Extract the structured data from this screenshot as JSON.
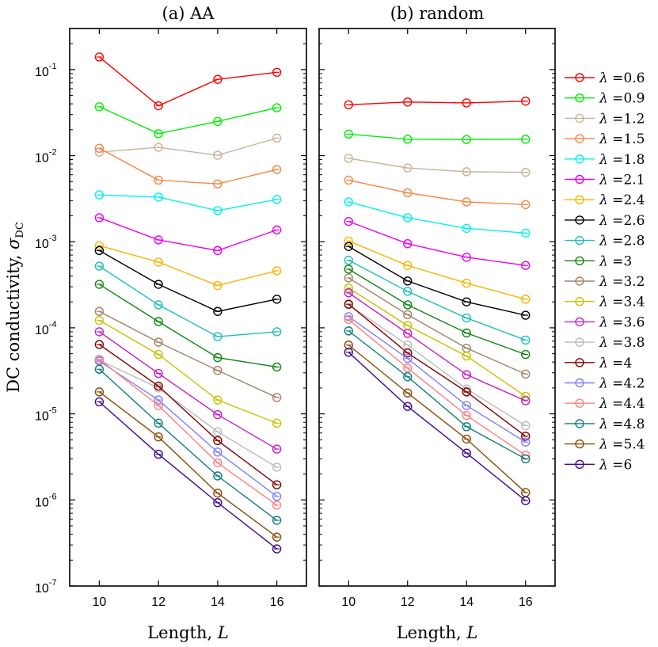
{
  "chart_data": [
    {
      "type": "line",
      "title": "(a) AA",
      "xlabel": "Length, ",
      "xlabel_var": "L",
      "ylabel": "DC conductivity, ",
      "ylabel_var": "σ",
      "ylabel_sub": "DC",
      "yscale": "log",
      "xlim": [
        9,
        17
      ],
      "ylim": [
        1e-07,
        0.3
      ],
      "x": [
        10,
        12,
        14,
        16
      ],
      "x_ticks": [
        "10",
        "12",
        "14",
        "16"
      ],
      "y_ticks": [
        {
          "base": "10",
          "exp": "-7"
        },
        {
          "base": "10",
          "exp": "-6"
        },
        {
          "base": "10",
          "exp": "-5"
        },
        {
          "base": "10",
          "exp": "-4"
        },
        {
          "base": "10",
          "exp": "-3"
        },
        {
          "base": "10",
          "exp": "-2"
        },
        {
          "base": "10",
          "exp": "-1"
        }
      ],
      "series": [
        {
          "name": "0.6",
          "color": "#ff0000",
          "values": [
            0.14,
            0.038,
            0.077,
            0.093
          ]
        },
        {
          "name": "0.9",
          "color": "#00ee00",
          "values": [
            0.037,
            0.018,
            0.025,
            0.036
          ]
        },
        {
          "name": "1.2",
          "color": "#c9b29a",
          "values": [
            0.011,
            0.0125,
            0.0101,
            0.016
          ]
        },
        {
          "name": "1.5",
          "color": "#f88547",
          "values": [
            0.0122,
            0.0052,
            0.0047,
            0.0069
          ]
        },
        {
          "name": "1.8",
          "color": "#00f2f2",
          "values": [
            0.0035,
            0.0033,
            0.0023,
            0.0031
          ]
        },
        {
          "name": "2.1",
          "color": "#ee00ee",
          "values": [
            0.0019,
            0.00105,
            0.00079,
            0.00137
          ]
        },
        {
          "name": "2.4",
          "color": "#f7b500",
          "values": [
            0.0009,
            0.00058,
            0.00031,
            0.00046
          ]
        },
        {
          "name": "2.6",
          "color": "#000000",
          "values": [
            0.00079,
            0.00032,
            0.000155,
            0.000215
          ]
        },
        {
          "name": "2.8",
          "color": "#1fbdbd",
          "values": [
            0.00052,
            0.000185,
            7.9e-05,
            9e-05
          ]
        },
        {
          "name": "3",
          "color": "#138413",
          "values": [
            0.00032,
            0.000118,
            4.5e-05,
            3.5e-05
          ]
        },
        {
          "name": "3.2",
          "color": "#a5826a",
          "values": [
            0.000155,
            6.8e-05,
            3.2e-05,
            1.55e-05
          ]
        },
        {
          "name": "3.4",
          "color": "#c4c400",
          "values": [
            0.000122,
            4.9e-05,
            1.45e-05,
            7.8e-06
          ]
        },
        {
          "name": "3.6",
          "color": "#c71ec7",
          "values": [
            9e-05,
            2.95e-05,
            9.8e-06,
            3.9e-06
          ]
        },
        {
          "name": "3.8",
          "color": "#bbbbbb",
          "values": [
            4.2e-05,
            2e-05,
            6.2e-06,
            2.4e-06
          ]
        },
        {
          "name": "4",
          "color": "#840000",
          "values": [
            6.4e-05,
            2.1e-05,
            4.9e-06,
            1.5e-06
          ]
        },
        {
          "name": "4.2",
          "color": "#7f7fff",
          "values": [
            4.1e-05,
            1.45e-05,
            3.6e-06,
            1.1e-06
          ]
        },
        {
          "name": "4.4",
          "color": "#ff8080",
          "values": [
            4.3e-05,
            1.25e-05,
            2.7e-06,
            8.7e-07
          ]
        },
        {
          "name": "4.8",
          "color": "#107d7d",
          "values": [
            3.3e-05,
            7.8e-06,
            1.9e-06,
            5.8e-07
          ]
        },
        {
          "name": "5.4",
          "color": "#8b4a06",
          "values": [
            1.8e-05,
            5.4e-06,
            1.2e-06,
            3.7e-07
          ]
        },
        {
          "name": "6",
          "color": "#3d0a93",
          "values": [
            1.38e-05,
            3.4e-06,
            9.3e-07,
            2.7e-07
          ]
        }
      ]
    },
    {
      "type": "line",
      "title": "(b) random",
      "xlabel": "Length, ",
      "xlabel_var": "L",
      "yscale": "log",
      "xlim": [
        9,
        17
      ],
      "ylim": [
        1e-07,
        0.3
      ],
      "x": [
        10,
        12,
        14,
        16
      ],
      "x_ticks": [
        "10",
        "12",
        "14",
        "16"
      ],
      "series": [
        {
          "name": "0.6",
          "color": "#ff0000",
          "values": [
            0.039,
            0.042,
            0.041,
            0.043
          ]
        },
        {
          "name": "0.9",
          "color": "#00ee00",
          "values": [
            0.0178,
            0.0155,
            0.0154,
            0.0155
          ]
        },
        {
          "name": "1.2",
          "color": "#c9b29a",
          "values": [
            0.0093,
            0.0072,
            0.0065,
            0.0064
          ]
        },
        {
          "name": "1.5",
          "color": "#f88547",
          "values": [
            0.0052,
            0.0037,
            0.0029,
            0.0027
          ]
        },
        {
          "name": "1.8",
          "color": "#00f2f2",
          "values": [
            0.0029,
            0.0019,
            0.00143,
            0.00126
          ]
        },
        {
          "name": "2.1",
          "color": "#ee00ee",
          "values": [
            0.00172,
            0.00095,
            0.00066,
            0.00053
          ]
        },
        {
          "name": "2.4",
          "color": "#f7b500",
          "values": [
            0.00102,
            0.00053,
            0.00033,
            0.000215
          ]
        },
        {
          "name": "2.6",
          "color": "#000000",
          "values": [
            0.00088,
            0.00035,
            0.0002,
            0.00014
          ]
        },
        {
          "name": "2.8",
          "color": "#1fbdbd",
          "values": [
            0.00061,
            0.000265,
            0.00013,
            7.2e-05
          ]
        },
        {
          "name": "3",
          "color": "#138413",
          "values": [
            0.00048,
            0.000185,
            8.7e-05,
            4.9e-05
          ]
        },
        {
          "name": "3.2",
          "color": "#a5826a",
          "values": [
            0.00038,
            0.000142,
            5.8e-05,
            2.9e-05
          ]
        },
        {
          "name": "3.4",
          "color": "#c4c400",
          "values": [
            0.00029,
            0.000106,
            4.7e-05,
            1.6e-05
          ]
        },
        {
          "name": "3.6",
          "color": "#c71ec7",
          "values": [
            0.000255,
            8.6e-05,
            2.85e-05,
            1.42e-05
          ]
        },
        {
          "name": "3.8",
          "color": "#bbbbbb",
          "values": [
            0.000185,
            6.3e-05,
            1.95e-05,
            7.3e-06
          ]
        },
        {
          "name": "4",
          "color": "#840000",
          "values": [
            0.000188,
            5.1e-05,
            1.8e-05,
            5.5e-06
          ]
        },
        {
          "name": "4.2",
          "color": "#7f7fff",
          "values": [
            0.000135,
            4.4e-05,
            1.25e-05,
            4.7e-06
          ]
        },
        {
          "name": "4.4",
          "color": "#ff8080",
          "values": [
            0.000125,
            3.4e-05,
            9.6e-06,
            3.3e-06
          ]
        },
        {
          "name": "4.8",
          "color": "#107d7d",
          "values": [
            9.2e-05,
            2.7e-05,
            7.1e-06,
            3e-06
          ]
        },
        {
          "name": "5.4",
          "color": "#8b4a06",
          "values": [
            6.3e-05,
            1.75e-05,
            5.1e-06,
            1.22e-06
          ]
        },
        {
          "name": "6",
          "color": "#3d0a93",
          "values": [
            5.2e-05,
            1.22e-05,
            3.5e-06,
            9.8e-07
          ]
        }
      ]
    }
  ],
  "legend": {
    "symbol": "λ",
    "sep": " ="
  }
}
